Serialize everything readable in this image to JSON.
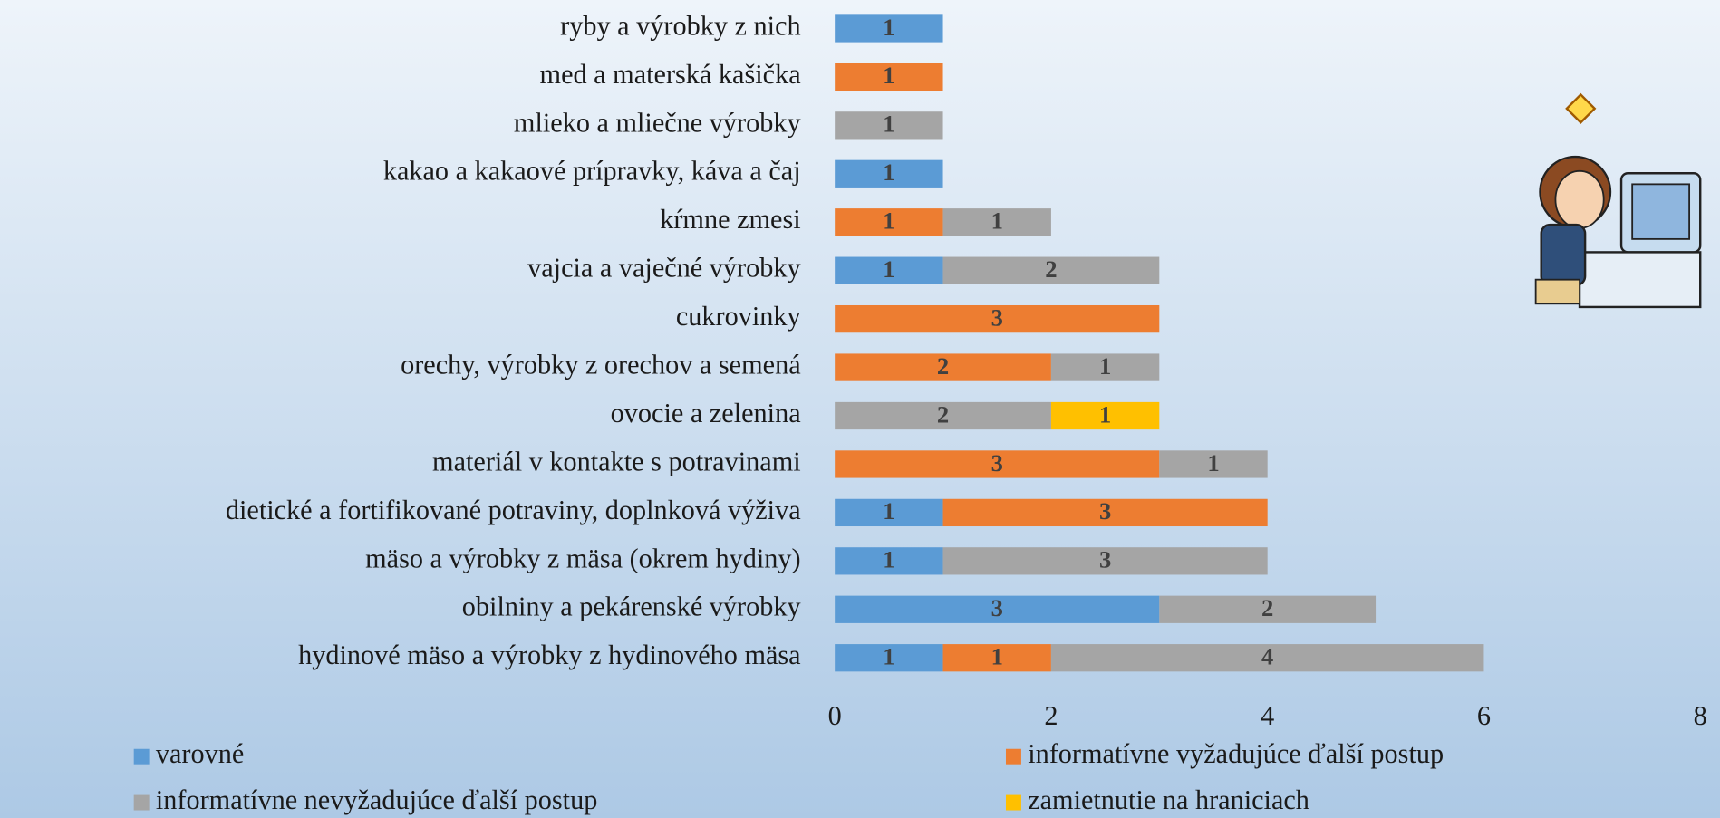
{
  "chart_data": {
    "type": "stacked-bar-horizontal",
    "categories": [
      "ryby a výrobky z nich",
      "med a materská kašička",
      "mlieko a mliečne výrobky",
      "kakao a kakaové prípravky, káva a čaj",
      "kŕmne zmesi",
      "vajcia a vaječné výrobky",
      "cukrovinky",
      "orechy, výrobky z orechov a semená",
      "ovocie a zelenina",
      "materiál v kontakte s potravinami",
      "dietické a fortifikované potraviny, doplnková výživa",
      "mäso a výrobky z mäsa (okrem hydiny)",
      "obilniny a pekárenské výrobky",
      "hydinové mäso a výrobky z hydinového mäsa"
    ],
    "series": [
      {
        "name": "varovné",
        "color": "#5b9bd5",
        "values": [
          1,
          null,
          null,
          1,
          null,
          1,
          null,
          null,
          null,
          null,
          1,
          1,
          3,
          1
        ]
      },
      {
        "name": "informatívne vyžadujúce ďalší postup",
        "color": "#ed7d31",
        "values": [
          null,
          1,
          null,
          null,
          1,
          null,
          3,
          2,
          null,
          3,
          3,
          null,
          null,
          1
        ]
      },
      {
        "name": "informatívne nevyžadujúce ďalší postup",
        "color": "#a5a5a5",
        "values": [
          null,
          null,
          1,
          null,
          1,
          2,
          null,
          1,
          2,
          1,
          null,
          3,
          2,
          4
        ]
      },
      {
        "name": "zamietnutie na hraniciach",
        "color": "#ffc000",
        "values": [
          null,
          null,
          null,
          null,
          null,
          null,
          null,
          null,
          1,
          null,
          null,
          null,
          null,
          null
        ]
      }
    ],
    "xlim": [
      0,
      8
    ],
    "xticks": [
      0,
      2,
      4,
      6,
      8
    ],
    "legend": "bottom"
  }
}
